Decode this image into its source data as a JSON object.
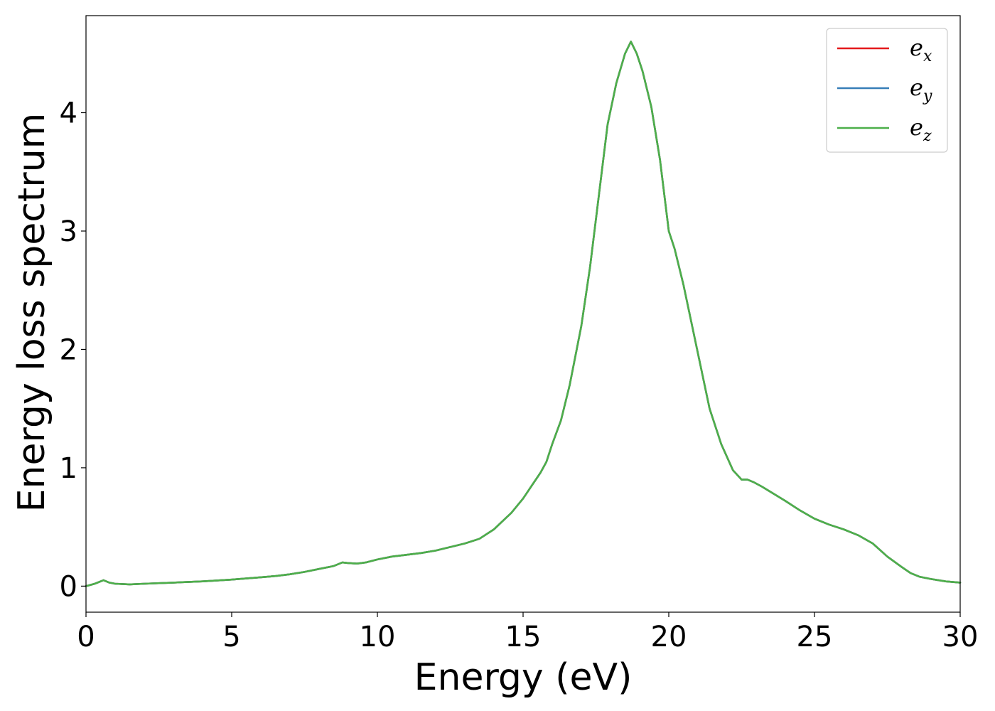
{
  "chart_data": {
    "type": "line",
    "xlabel": "Energy (eV)",
    "ylabel": "Energy loss spectrum",
    "xlim": [
      0,
      30
    ],
    "ylim": [
      -0.22,
      4.82
    ],
    "xticks": [
      "0",
      "5",
      "10",
      "15",
      "20",
      "25",
      "30"
    ],
    "yticks": [
      "0",
      "1",
      "2",
      "3",
      "4"
    ],
    "grid": false,
    "legend_position": "top-right",
    "series": [
      {
        "name": "e_x",
        "legend_base": "e",
        "legend_sub": "x",
        "color": "#e41a1c",
        "x": [
          0,
          0.3,
          0.6,
          0.8,
          1.0,
          1.5,
          2,
          3,
          4,
          5,
          6,
          6.5,
          7,
          7.5,
          8,
          8.5,
          8.8,
          9.0,
          9.3,
          9.6,
          10,
          10.5,
          11,
          11.5,
          12,
          12.5,
          13,
          13.5,
          14,
          14.3,
          14.6,
          15,
          15.3,
          15.6,
          15.8,
          16,
          16.3,
          16.6,
          17,
          17.3,
          17.6,
          17.9,
          18.2,
          18.5,
          18.7,
          18.9,
          19.1,
          19.4,
          19.7,
          20.0,
          20.2,
          20.5,
          20.8,
          21.1,
          21.4,
          21.8,
          22.2,
          22.5,
          22.7,
          22.9,
          23.2,
          23.6,
          24.0,
          24.5,
          25.0,
          25.5,
          26.0,
          26.5,
          27.0,
          27.5,
          28.0,
          28.3,
          28.6,
          29.0,
          29.5,
          30
        ],
        "y": [
          0.0,
          0.02,
          0.05,
          0.03,
          0.02,
          0.015,
          0.02,
          0.03,
          0.04,
          0.055,
          0.075,
          0.085,
          0.1,
          0.12,
          0.145,
          0.17,
          0.2,
          0.195,
          0.19,
          0.2,
          0.225,
          0.25,
          0.265,
          0.28,
          0.3,
          0.33,
          0.36,
          0.4,
          0.48,
          0.55,
          0.62,
          0.74,
          0.85,
          0.96,
          1.05,
          1.2,
          1.4,
          1.7,
          2.2,
          2.7,
          3.3,
          3.9,
          4.25,
          4.5,
          4.6,
          4.5,
          4.35,
          4.05,
          3.6,
          3.0,
          2.85,
          2.55,
          2.2,
          1.85,
          1.5,
          1.2,
          0.98,
          0.9,
          0.9,
          0.88,
          0.84,
          0.78,
          0.72,
          0.64,
          0.57,
          0.52,
          0.48,
          0.43,
          0.36,
          0.25,
          0.16,
          0.11,
          0.08,
          0.06,
          0.04,
          0.03
        ]
      },
      {
        "name": "e_y",
        "legend_base": "e",
        "legend_sub": "y",
        "color": "#377eb8",
        "x": [
          0,
          0.3,
          0.6,
          0.8,
          1.0,
          1.5,
          2,
          3,
          4,
          5,
          6,
          6.5,
          7,
          7.5,
          8,
          8.5,
          8.8,
          9.0,
          9.3,
          9.6,
          10,
          10.5,
          11,
          11.5,
          12,
          12.5,
          13,
          13.5,
          14,
          14.3,
          14.6,
          15,
          15.3,
          15.6,
          15.8,
          16,
          16.3,
          16.6,
          17,
          17.3,
          17.6,
          17.9,
          18.2,
          18.5,
          18.7,
          18.9,
          19.1,
          19.4,
          19.7,
          20.0,
          20.2,
          20.5,
          20.8,
          21.1,
          21.4,
          21.8,
          22.2,
          22.5,
          22.7,
          22.9,
          23.2,
          23.6,
          24.0,
          24.5,
          25.0,
          25.5,
          26.0,
          26.5,
          27.0,
          27.5,
          28.0,
          28.3,
          28.6,
          29.0,
          29.5,
          30
        ],
        "y": [
          0.0,
          0.02,
          0.05,
          0.03,
          0.02,
          0.015,
          0.02,
          0.03,
          0.04,
          0.055,
          0.075,
          0.085,
          0.1,
          0.12,
          0.145,
          0.17,
          0.2,
          0.195,
          0.19,
          0.2,
          0.225,
          0.25,
          0.265,
          0.28,
          0.3,
          0.33,
          0.36,
          0.4,
          0.48,
          0.55,
          0.62,
          0.74,
          0.85,
          0.96,
          1.05,
          1.2,
          1.4,
          1.7,
          2.2,
          2.7,
          3.3,
          3.9,
          4.25,
          4.5,
          4.6,
          4.5,
          4.35,
          4.05,
          3.6,
          3.0,
          2.85,
          2.55,
          2.2,
          1.85,
          1.5,
          1.2,
          0.98,
          0.9,
          0.9,
          0.88,
          0.84,
          0.78,
          0.72,
          0.64,
          0.57,
          0.52,
          0.48,
          0.43,
          0.36,
          0.25,
          0.16,
          0.11,
          0.08,
          0.06,
          0.04,
          0.03
        ]
      },
      {
        "name": "e_z",
        "legend_base": "e",
        "legend_sub": "z",
        "color": "#4daf4a",
        "x": [
          0,
          0.3,
          0.6,
          0.8,
          1.0,
          1.5,
          2,
          3,
          4,
          5,
          6,
          6.5,
          7,
          7.5,
          8,
          8.5,
          8.8,
          9.0,
          9.3,
          9.6,
          10,
          10.5,
          11,
          11.5,
          12,
          12.5,
          13,
          13.5,
          14,
          14.3,
          14.6,
          15,
          15.3,
          15.6,
          15.8,
          16,
          16.3,
          16.6,
          17,
          17.3,
          17.6,
          17.9,
          18.2,
          18.5,
          18.7,
          18.9,
          19.1,
          19.4,
          19.7,
          20.0,
          20.2,
          20.5,
          20.8,
          21.1,
          21.4,
          21.8,
          22.2,
          22.5,
          22.7,
          22.9,
          23.2,
          23.6,
          24.0,
          24.5,
          25.0,
          25.5,
          26.0,
          26.5,
          27.0,
          27.5,
          28.0,
          28.3,
          28.6,
          29.0,
          29.5,
          30
        ],
        "y": [
          0.0,
          0.02,
          0.05,
          0.03,
          0.02,
          0.015,
          0.02,
          0.03,
          0.04,
          0.055,
          0.075,
          0.085,
          0.1,
          0.12,
          0.145,
          0.17,
          0.2,
          0.195,
          0.19,
          0.2,
          0.225,
          0.25,
          0.265,
          0.28,
          0.3,
          0.33,
          0.36,
          0.4,
          0.48,
          0.55,
          0.62,
          0.74,
          0.85,
          0.96,
          1.05,
          1.2,
          1.4,
          1.7,
          2.2,
          2.7,
          3.3,
          3.9,
          4.25,
          4.5,
          4.6,
          4.5,
          4.35,
          4.05,
          3.6,
          3.0,
          2.85,
          2.55,
          2.2,
          1.85,
          1.5,
          1.2,
          0.98,
          0.9,
          0.9,
          0.88,
          0.84,
          0.78,
          0.72,
          0.64,
          0.57,
          0.52,
          0.48,
          0.43,
          0.36,
          0.25,
          0.16,
          0.11,
          0.08,
          0.06,
          0.04,
          0.03
        ]
      }
    ]
  }
}
